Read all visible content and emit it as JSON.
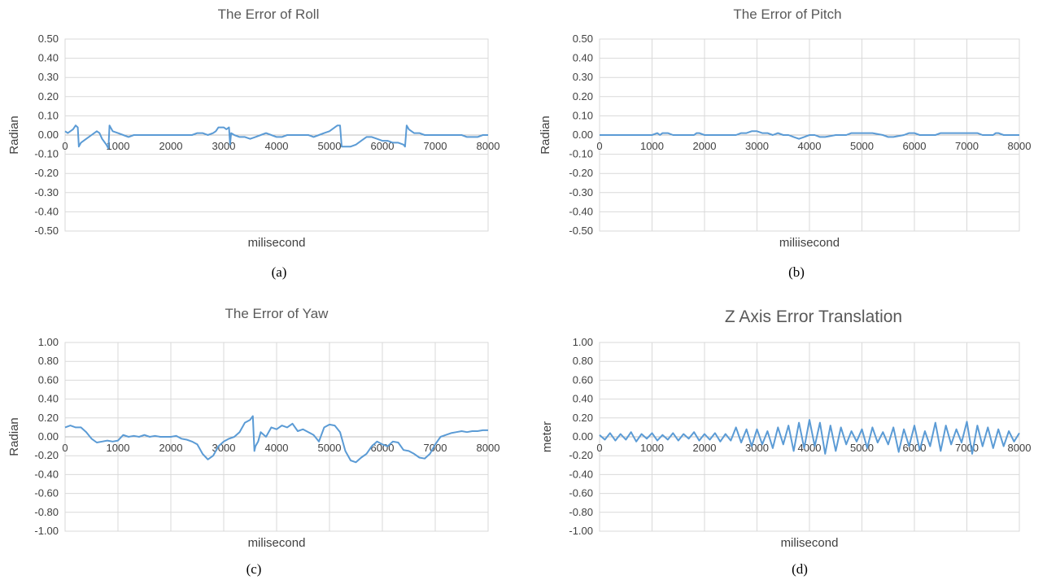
{
  "colors": {
    "series": "#5b9bd5",
    "grid": "#d9d9d9"
  },
  "chart_data": [
    {
      "type": "line",
      "title": "The Error of Roll",
      "xlabel": "milisecond",
      "ylabel": "Radian",
      "caption": "(a)",
      "xlim": [
        0,
        8000
      ],
      "ylim": [
        -0.5,
        0.5
      ],
      "xticks": [
        0,
        1000,
        2000,
        3000,
        4000,
        5000,
        6000,
        7000,
        8000
      ],
      "xtick_labels": [
        "0",
        "1000",
        "2000",
        "3000",
        "4000",
        "5000",
        "6000",
        "7000",
        "8000"
      ],
      "yticks": [
        -0.5,
        -0.4,
        -0.3,
        -0.2,
        -0.1,
        0,
        0.1,
        0.2,
        0.3,
        0.4,
        0.5
      ],
      "ytick_labels": [
        "-0.50",
        "-0.40",
        "-0.30",
        "-0.20",
        "-0.10",
        "0.00",
        "0.10",
        "0.20",
        "0.30",
        "0.40",
        "0.50"
      ],
      "grid": {
        "horizontal": true,
        "vertical": false
      },
      "x": [
        0,
        50,
        100,
        150,
        200,
        240,
        260,
        300,
        400,
        500,
        600,
        650,
        700,
        780,
        820,
        840,
        860,
        880,
        900,
        1000,
        1100,
        1200,
        1300,
        1400,
        1500,
        1600,
        1700,
        1800,
        1900,
        2000,
        2100,
        2200,
        2300,
        2400,
        2500,
        2600,
        2700,
        2800,
        2850,
        2900,
        3000,
        3050,
        3100,
        3120,
        3140,
        3200,
        3300,
        3400,
        3500,
        3600,
        3700,
        3800,
        3900,
        4000,
        4100,
        4200,
        4300,
        4400,
        4500,
        4600,
        4700,
        4800,
        4900,
        5000,
        5100,
        5150,
        5200,
        5230,
        5260,
        5300,
        5400,
        5500,
        5600,
        5700,
        5800,
        5900,
        6000,
        6100,
        6200,
        6300,
        6400,
        6430,
        6460,
        6500,
        6550,
        6600,
        6700,
        6800,
        6900,
        7000,
        7100,
        7200,
        7300,
        7400,
        7500,
        7600,
        7700,
        7800,
        7900,
        8000
      ],
      "values": [
        0.02,
        0.01,
        0.02,
        0.03,
        0.05,
        0.04,
        -0.06,
        -0.04,
        -0.02,
        0.0,
        0.02,
        0.01,
        -0.02,
        -0.05,
        -0.07,
        0.05,
        0.04,
        0.03,
        0.02,
        0.01,
        0.0,
        -0.01,
        0.0,
        0.0,
        0.0,
        0.0,
        0.0,
        0.0,
        0.0,
        0.0,
        0.0,
        0.0,
        0.0,
        0.0,
        0.01,
        0.01,
        0.0,
        0.01,
        0.02,
        0.04,
        0.04,
        0.03,
        0.04,
        -0.05,
        0.01,
        0.0,
        -0.01,
        -0.01,
        -0.02,
        -0.01,
        0.0,
        0.01,
        0.0,
        -0.01,
        -0.01,
        0.0,
        0.0,
        0.0,
        0.0,
        0.0,
        -0.01,
        0.0,
        0.01,
        0.02,
        0.04,
        0.05,
        0.05,
        -0.06,
        -0.06,
        -0.06,
        -0.06,
        -0.05,
        -0.03,
        -0.01,
        -0.01,
        -0.02,
        -0.03,
        -0.03,
        -0.04,
        -0.04,
        -0.05,
        -0.06,
        0.05,
        0.03,
        0.02,
        0.01,
        0.01,
        0.0,
        0.0,
        0.0,
        0.0,
        0.0,
        0.0,
        0.0,
        0.0,
        -0.01,
        -0.01,
        -0.01,
        0.0,
        0.0
      ]
    },
    {
      "type": "line",
      "title": "The Error of Pitch",
      "xlabel": "miliisecond",
      "ylabel": "Radian",
      "caption": "(b)",
      "xlim": [
        0,
        8000
      ],
      "ylim": [
        -0.5,
        0.5
      ],
      "xticks": [
        0,
        1000,
        2000,
        3000,
        4000,
        5000,
        6000,
        7000,
        8000
      ],
      "xtick_labels": [
        "0",
        "1000",
        "2000",
        "3000",
        "4000",
        "5000",
        "6000",
        "7000",
        "8000"
      ],
      "yticks": [
        -0.5,
        -0.4,
        -0.3,
        -0.2,
        -0.1,
        0,
        0.1,
        0.2,
        0.3,
        0.4,
        0.5
      ],
      "ytick_labels": [
        "-0.50",
        "-0.40",
        "-0.30",
        "-0.20",
        "-0.10",
        "0.00",
        "0.10",
        "0.20",
        "0.30",
        "0.40",
        "0.50"
      ],
      "grid": {
        "horizontal": true,
        "vertical": true
      },
      "x": [
        0,
        500,
        1000,
        1100,
        1150,
        1200,
        1300,
        1400,
        1800,
        1850,
        1900,
        2000,
        2600,
        2700,
        2800,
        2900,
        3000,
        3100,
        3200,
        3300,
        3400,
        3500,
        3600,
        3700,
        3800,
        3900,
        4000,
        4100,
        4200,
        4300,
        4500,
        4700,
        4800,
        5000,
        5200,
        5400,
        5500,
        5600,
        5800,
        5900,
        6000,
        6100,
        6200,
        6400,
        6500,
        6600,
        7000,
        7200,
        7300,
        7500,
        7550,
        7600,
        7700,
        8000
      ],
      "values": [
        0.0,
        0.0,
        0.0,
        0.01,
        0.0,
        0.01,
        0.01,
        0.0,
        0.0,
        0.01,
        0.01,
        0.0,
        0.0,
        0.01,
        0.01,
        0.02,
        0.02,
        0.01,
        0.01,
        0.0,
        0.01,
        0.0,
        0.0,
        -0.01,
        -0.02,
        -0.01,
        0.0,
        0.0,
        -0.01,
        -0.01,
        0.0,
        0.0,
        0.01,
        0.01,
        0.01,
        0.0,
        -0.01,
        -0.01,
        0.0,
        0.01,
        0.01,
        0.0,
        0.0,
        0.0,
        0.01,
        0.01,
        0.01,
        0.01,
        0.0,
        0.0,
        0.01,
        0.01,
        0.0,
        0.0
      ]
    },
    {
      "type": "line",
      "title": "The Error of Yaw",
      "xlabel": "milisecond",
      "ylabel": "Radian",
      "caption": "(c)",
      "xlim": [
        0,
        8000
      ],
      "ylim": [
        -1.0,
        1.0
      ],
      "xticks": [
        0,
        1000,
        2000,
        3000,
        4000,
        5000,
        6000,
        7000,
        8000
      ],
      "xtick_labels": [
        "0",
        "1000",
        "2000",
        "3000",
        "4000",
        "5000",
        "6000",
        "7000",
        "8000"
      ],
      "yticks": [
        -1.0,
        -0.8,
        -0.6,
        -0.4,
        -0.2,
        0,
        0.2,
        0.4,
        0.6,
        0.8,
        1.0
      ],
      "ytick_labels": [
        "-1.00",
        "-0.80",
        "-0.60",
        "-0.40",
        "-0.20",
        "0.00",
        "0.20",
        "0.40",
        "0.60",
        "0.80",
        "1.00"
      ],
      "grid": {
        "horizontal": true,
        "vertical": true
      },
      "x": [
        0,
        100,
        200,
        300,
        400,
        500,
        600,
        700,
        800,
        900,
        1000,
        1100,
        1200,
        1300,
        1400,
        1500,
        1600,
        1700,
        1800,
        1900,
        2000,
        2100,
        2200,
        2300,
        2400,
        2500,
        2600,
        2700,
        2800,
        2900,
        3000,
        3100,
        3200,
        3300,
        3400,
        3500,
        3550,
        3580,
        3600,
        3650,
        3700,
        3800,
        3900,
        4000,
        4100,
        4200,
        4300,
        4400,
        4500,
        4600,
        4700,
        4800,
        4900,
        5000,
        5100,
        5200,
        5300,
        5400,
        5500,
        5600,
        5700,
        5800,
        5900,
        6000,
        6100,
        6200,
        6300,
        6400,
        6500,
        6600,
        6700,
        6800,
        6900,
        7000,
        7100,
        7200,
        7300,
        7400,
        7500,
        7600,
        7700,
        7800,
        7900,
        8000
      ],
      "values": [
        0.1,
        0.12,
        0.1,
        0.1,
        0.05,
        -0.02,
        -0.06,
        -0.05,
        -0.04,
        -0.05,
        -0.04,
        0.02,
        0.0,
        0.01,
        0.0,
        0.02,
        0.0,
        0.01,
        0.0,
        0.0,
        0.0,
        0.01,
        -0.02,
        -0.03,
        -0.05,
        -0.08,
        -0.18,
        -0.24,
        -0.2,
        -0.1,
        -0.05,
        -0.02,
        0.0,
        0.05,
        0.15,
        0.18,
        0.22,
        -0.15,
        -0.1,
        -0.05,
        0.05,
        0.0,
        0.1,
        0.08,
        0.12,
        0.1,
        0.14,
        0.06,
        0.08,
        0.05,
        0.02,
        -0.05,
        0.1,
        0.13,
        0.12,
        0.05,
        -0.15,
        -0.25,
        -0.27,
        -0.22,
        -0.18,
        -0.1,
        -0.05,
        -0.08,
        -0.1,
        -0.05,
        -0.06,
        -0.14,
        -0.15,
        -0.18,
        -0.22,
        -0.23,
        -0.18,
        -0.08,
        0.0,
        0.02,
        0.04,
        0.05,
        0.06,
        0.05,
        0.06,
        0.06,
        0.07,
        0.07
      ]
    },
    {
      "type": "line",
      "title": "Z Axis Error Translation",
      "xlabel": "milisecond",
      "ylabel": "meter",
      "caption": "(d)",
      "xlim": [
        0,
        8000
      ],
      "ylim": [
        -1.0,
        1.0
      ],
      "xticks": [
        0,
        1000,
        2000,
        3000,
        4000,
        5000,
        6000,
        7000,
        8000
      ],
      "xtick_labels": [
        "0",
        "1000",
        "2000",
        "3000",
        "4000",
        "5000",
        "6000",
        "7000",
        "8000"
      ],
      "yticks": [
        -1.0,
        -0.8,
        -0.6,
        -0.4,
        -0.2,
        0,
        0.2,
        0.4,
        0.6,
        0.8,
        1.0
      ],
      "ytick_labels": [
        "-1.00",
        "-0.80",
        "-0.60",
        "-0.40",
        "-0.20",
        "0.00",
        "0.20",
        "0.40",
        "0.60",
        "0.80",
        "1.00"
      ],
      "grid": {
        "horizontal": true,
        "vertical": true
      },
      "x": [
        0,
        100,
        200,
        300,
        400,
        500,
        600,
        700,
        800,
        900,
        1000,
        1100,
        1200,
        1300,
        1400,
        1500,
        1600,
        1700,
        1800,
        1900,
        2000,
        2100,
        2200,
        2300,
        2400,
        2500,
        2600,
        2700,
        2800,
        2900,
        3000,
        3100,
        3200,
        3300,
        3400,
        3500,
        3600,
        3700,
        3800,
        3900,
        4000,
        4100,
        4200,
        4300,
        4400,
        4500,
        4600,
        4700,
        4800,
        4900,
        5000,
        5100,
        5200,
        5300,
        5400,
        5500,
        5600,
        5700,
        5800,
        5900,
        6000,
        6100,
        6200,
        6300,
        6400,
        6500,
        6600,
        6700,
        6800,
        6900,
        7000,
        7100,
        7200,
        7300,
        7400,
        7500,
        7600,
        7700,
        7800,
        7900,
        8000
      ],
      "values": [
        0.02,
        -0.03,
        0.04,
        -0.04,
        0.03,
        -0.03,
        0.05,
        -0.05,
        0.03,
        -0.02,
        0.04,
        -0.04,
        0.02,
        -0.03,
        0.04,
        -0.04,
        0.03,
        -0.02,
        0.05,
        -0.04,
        0.03,
        -0.03,
        0.04,
        -0.05,
        0.03,
        -0.04,
        0.1,
        -0.06,
        0.08,
        -0.1,
        0.08,
        -0.08,
        0.06,
        -0.12,
        0.1,
        -0.08,
        0.12,
        -0.15,
        0.15,
        -0.12,
        0.18,
        -0.1,
        0.15,
        -0.18,
        0.12,
        -0.15,
        0.1,
        -0.08,
        0.06,
        -0.05,
        0.08,
        -0.12,
        0.1,
        -0.06,
        0.05,
        -0.08,
        0.1,
        -0.16,
        0.08,
        -0.1,
        0.12,
        -0.14,
        0.06,
        -0.1,
        0.15,
        -0.15,
        0.12,
        -0.08,
        0.08,
        -0.06,
        0.16,
        -0.18,
        0.12,
        -0.1,
        0.1,
        -0.12,
        0.08,
        -0.1,
        0.06,
        -0.05,
        0.04
      ]
    }
  ]
}
